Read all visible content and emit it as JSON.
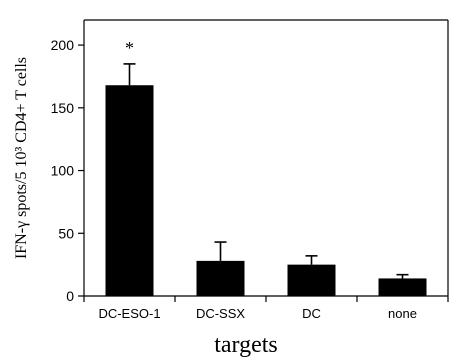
{
  "chart_data": {
    "type": "bar",
    "title": "",
    "xlabel": "targets",
    "ylabel": "IFN-γ spots/5 10³ CD4+ T cells",
    "ylim": [
      0,
      220
    ],
    "yticks": [
      0,
      50,
      100,
      150,
      200
    ],
    "categories": [
      "DC-ESO-1",
      "DC-SSX",
      "DC",
      "none"
    ],
    "values": [
      168,
      28,
      25,
      14
    ],
    "errors": [
      17,
      15,
      7,
      3
    ],
    "annotations": [
      {
        "category": "DC-ESO-1",
        "text": "*"
      }
    ],
    "bar_color": "#000000",
    "grid": false
  }
}
